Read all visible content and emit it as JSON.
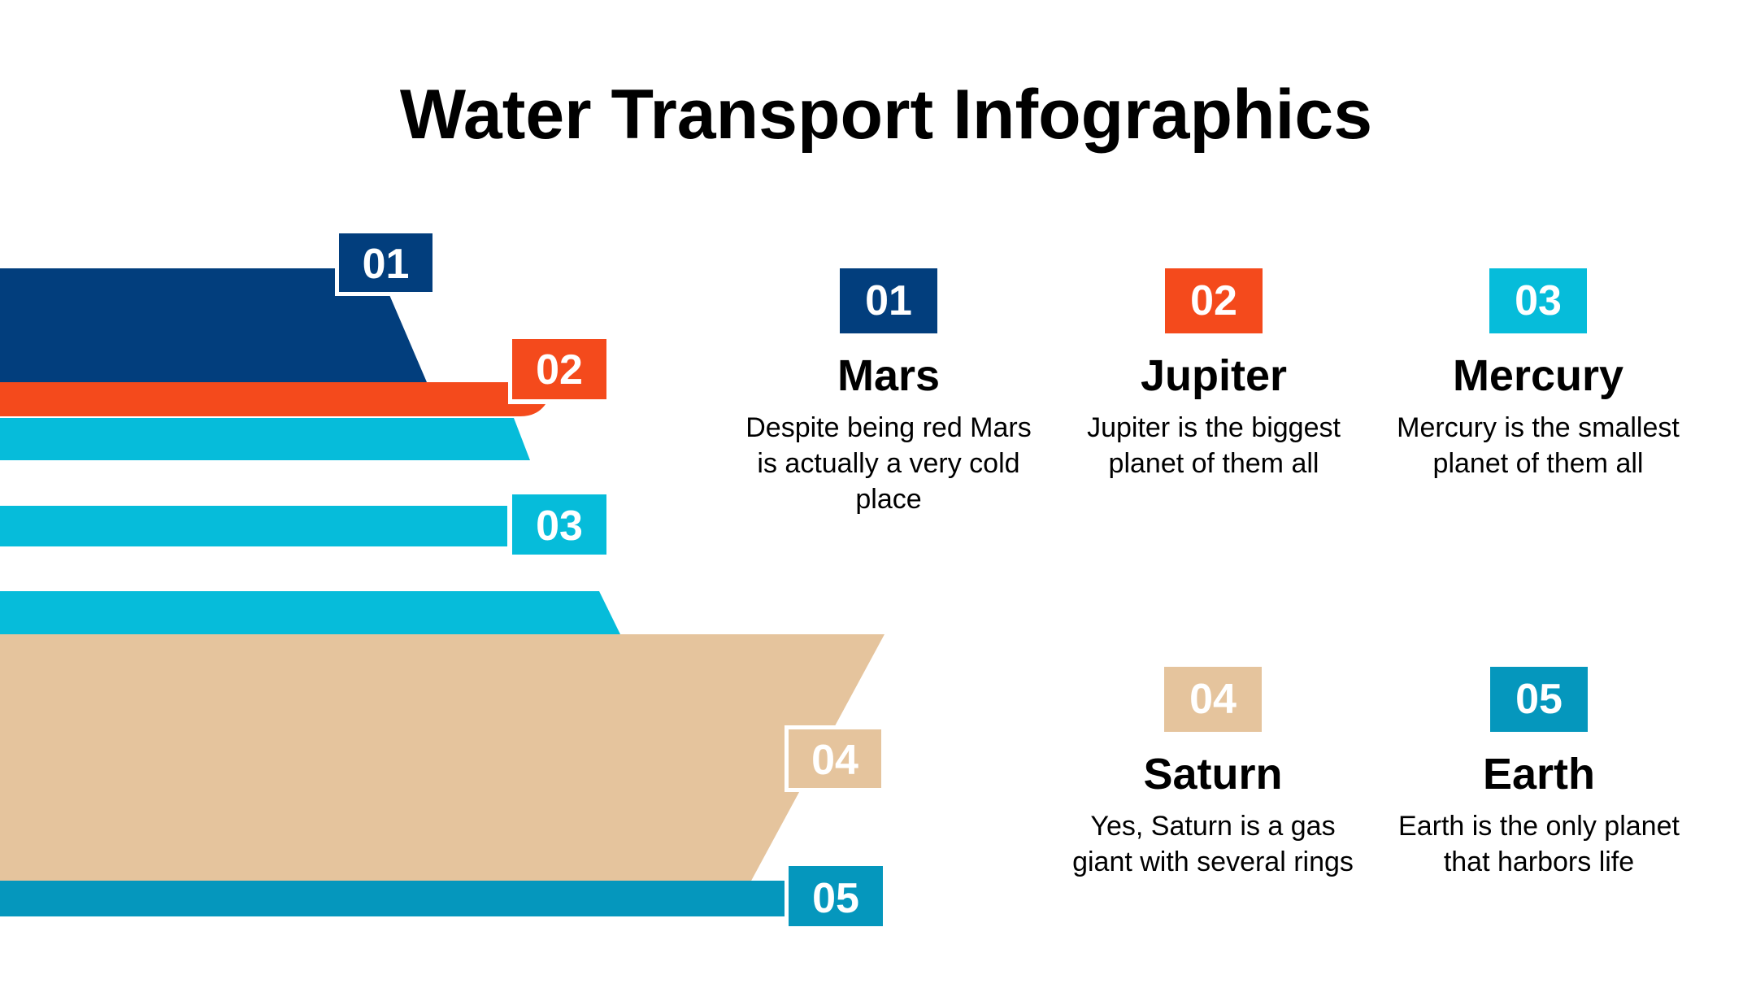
{
  "title": "Water Transport Infographics",
  "colors": {
    "navy": "#023e7d",
    "orange": "#f44a1c",
    "cyan": "#06bcda",
    "tan": "#e5c49d",
    "teal": "#0597bd"
  },
  "ship_labels": [
    "01",
    "02",
    "03",
    "04",
    "05"
  ],
  "items": [
    {
      "number": "01",
      "name": "Mars",
      "description": "Despite being red Mars is actually a very cold place"
    },
    {
      "number": "02",
      "name": "Jupiter",
      "description": "Jupiter is the biggest planet of them all"
    },
    {
      "number": "03",
      "name": "Mercury",
      "description": "Mercury is the smallest planet of them all"
    },
    {
      "number": "04",
      "name": "Saturn",
      "description": "Yes, Saturn is a gas giant with several rings"
    },
    {
      "number": "05",
      "name": "Earth",
      "description": "Earth is the only planet that harbors life"
    }
  ]
}
